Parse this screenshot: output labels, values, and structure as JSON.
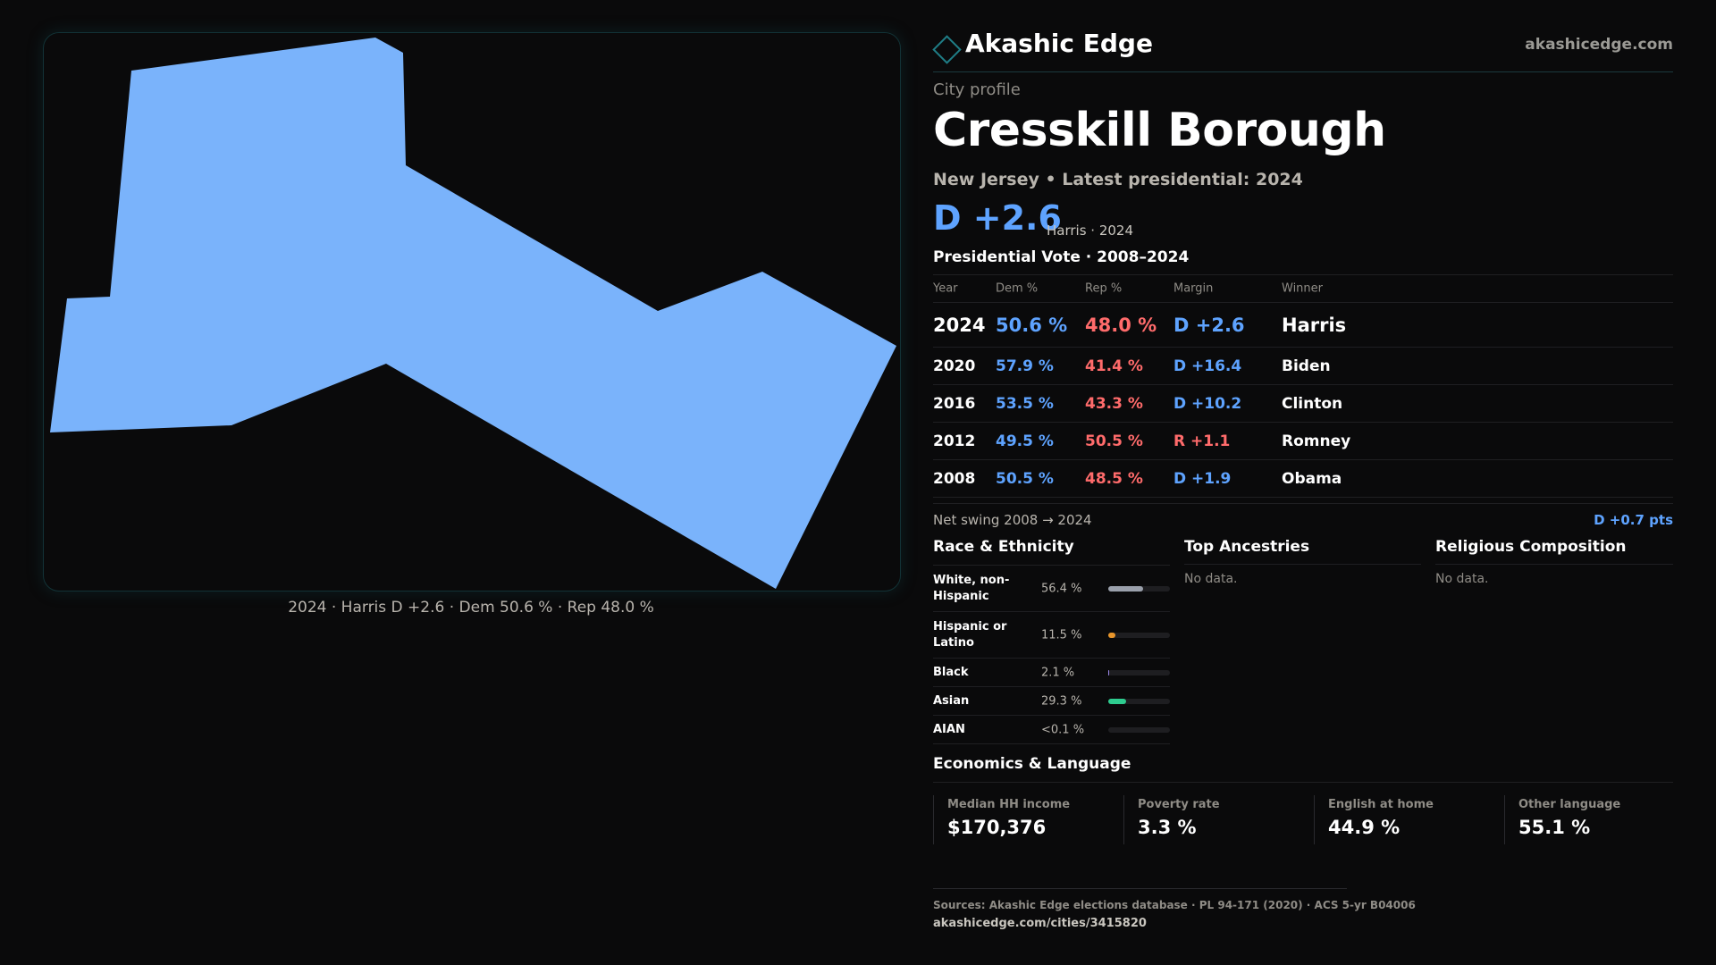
{
  "brand": {
    "name": "Akashic Edge",
    "url": "akashicedge.com"
  },
  "profile": {
    "eyebrow": "City profile",
    "title": "Cresskill Borough",
    "subtitle": "New Jersey • Latest presidential: 2024",
    "headline_margin": "D +2.6",
    "headline_sub": "Harris · 2024"
  },
  "map": {
    "caption": "2024 · Harris D +2.6 · Dem 50.6 % · Rep 48.0 %",
    "fill_color": "#7ab3fb"
  },
  "presidential": {
    "title": "Presidential Vote · 2008–2024",
    "headers": {
      "year": "Year",
      "dem": "Dem %",
      "rep": "Rep %",
      "margin": "Margin",
      "winner": "Winner"
    },
    "rows": [
      {
        "year": "2024",
        "dem": "50.6 %",
        "rep": "48.0 %",
        "margin": "D +2.6",
        "margin_party": "dem",
        "winner": "Harris"
      },
      {
        "year": "2020",
        "dem": "57.9 %",
        "rep": "41.4 %",
        "margin": "D +16.4",
        "margin_party": "dem",
        "winner": "Biden"
      },
      {
        "year": "2016",
        "dem": "53.5 %",
        "rep": "43.3 %",
        "margin": "D +10.2",
        "margin_party": "dem",
        "winner": "Clinton"
      },
      {
        "year": "2012",
        "dem": "49.5 %",
        "rep": "50.5 %",
        "margin": "R +1.1",
        "margin_party": "rep",
        "winner": "Romney"
      },
      {
        "year": "2008",
        "dem": "50.5 %",
        "rep": "48.5 %",
        "margin": "D +1.9",
        "margin_party": "dem",
        "winner": "Obama"
      }
    ],
    "swing_label": "Net swing 2008 → 2024",
    "swing_value": "D +0.7 pts"
  },
  "race": {
    "title": "Race & Ethnicity",
    "rows": [
      {
        "label": "White, non-Hispanic",
        "value": "56.4 %",
        "share": 0.564,
        "color": "#9aa0ab"
      },
      {
        "label": "Hispanic or Latino",
        "value": "11.5 %",
        "share": 0.115,
        "color": "#e8962b"
      },
      {
        "label": "Black",
        "value": "2.1 %",
        "share": 0.021,
        "color": "#9a86e8"
      },
      {
        "label": "Asian",
        "value": "29.3 %",
        "share": 0.293,
        "color": "#2ecc8f"
      },
      {
        "label": "AIAN",
        "value": "<0.1 %",
        "share": 0.0,
        "color": "#9aa0ab"
      }
    ]
  },
  "ancestries": {
    "title": "Top Ancestries",
    "empty": "No data."
  },
  "religion": {
    "title": "Religious Composition",
    "empty": "No data."
  },
  "economics": {
    "title": "Economics & Language",
    "stats": [
      {
        "label": "Median HH income",
        "value": "$170,376"
      },
      {
        "label": "Poverty rate",
        "value": "3.3 %"
      },
      {
        "label": "English at home",
        "value": "44.9 %"
      },
      {
        "label": "Other language",
        "value": "55.1 %"
      }
    ]
  },
  "footer": {
    "sources": "Sources: Akashic Edge elections database · PL 94-171 (2020) · ACS 5-yr B04006",
    "url": "akashicedge.com/cities/3415820"
  }
}
